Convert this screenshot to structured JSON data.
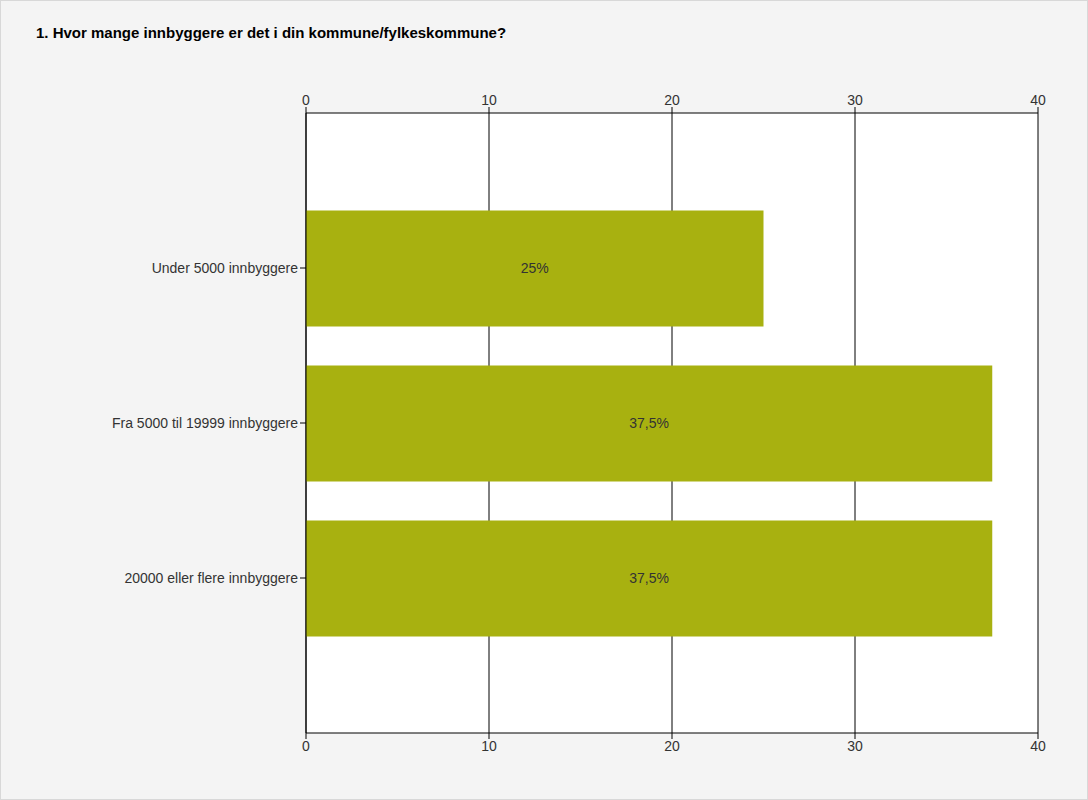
{
  "chart_data": {
    "type": "bar",
    "title": "1. Hvor mange innbyggere er det i din kommune/fylkeskommune?",
    "orientation": "horizontal",
    "categories": [
      "Under 5000 innbyggere",
      "Fra 5000 til 19999 innbyggere",
      "20000 eller flere innbyggere"
    ],
    "values": [
      25,
      37.5,
      37.5
    ],
    "value_labels": [
      "25%",
      "37,5%",
      "37,5%"
    ],
    "color": "#a8b110",
    "xlim": [
      0,
      40
    ],
    "xticks": [
      0,
      10,
      20,
      30,
      40
    ],
    "grid": true,
    "data_labels": true
  }
}
